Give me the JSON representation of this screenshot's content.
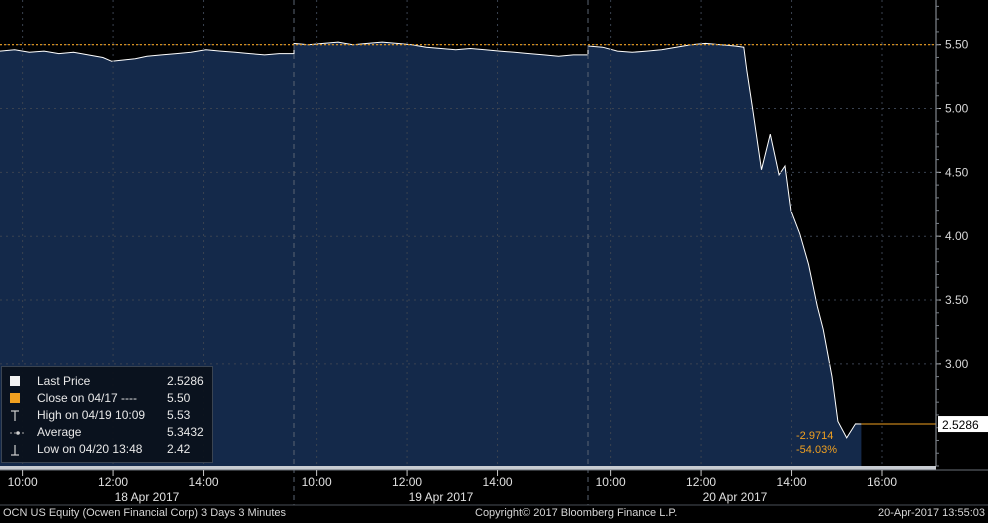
{
  "chart_data": {
    "type": "area",
    "security": "OCN US Equity",
    "x_sessions": [
      {
        "date_label": "18 Apr 2017",
        "time_labels": [
          "10:00",
          "12:00",
          "14:00"
        ]
      },
      {
        "date_label": "19 Apr 2017",
        "time_labels": [
          "10:00",
          "12:00",
          "14:00"
        ]
      },
      {
        "date_label": "20 Apr 2017",
        "time_labels": [
          "10:00",
          "12:00",
          "14:00",
          "16:00"
        ]
      }
    ],
    "y_ticks": [
      "3.00",
      "3.50",
      "4.00",
      "4.50",
      "5.00",
      "5.50"
    ],
    "ylim": [
      2.2,
      5.85
    ],
    "x_unit": "session-day (0 = 18 Apr 09:30, 1 = 19 Apr 09:30, 2 = 20 Apr 09:30)",
    "series": [
      {
        "name": "Last Price",
        "color": "#ffffff",
        "fill": "#14294a",
        "points": [
          [
            0.0,
            5.45
          ],
          [
            0.05,
            5.46
          ],
          [
            0.1,
            5.44
          ],
          [
            0.15,
            5.45
          ],
          [
            0.2,
            5.43
          ],
          [
            0.25,
            5.44
          ],
          [
            0.3,
            5.42
          ],
          [
            0.35,
            5.4
          ],
          [
            0.38,
            5.37
          ],
          [
            0.42,
            5.38
          ],
          [
            0.46,
            5.39
          ],
          [
            0.5,
            5.41
          ],
          [
            0.55,
            5.42
          ],
          [
            0.6,
            5.43
          ],
          [
            0.65,
            5.44
          ],
          [
            0.7,
            5.46
          ],
          [
            0.75,
            5.45
          ],
          [
            0.8,
            5.44
          ],
          [
            0.85,
            5.43
          ],
          [
            0.9,
            5.42
          ],
          [
            0.95,
            5.43
          ],
          [
            1.0,
            5.43
          ],
          [
            1.0,
            5.51
          ],
          [
            1.05,
            5.5
          ],
          [
            1.1,
            5.51
          ],
          [
            1.15,
            5.52
          ],
          [
            1.2,
            5.5
          ],
          [
            1.25,
            5.51
          ],
          [
            1.3,
            5.52
          ],
          [
            1.35,
            5.51
          ],
          [
            1.4,
            5.5
          ],
          [
            1.45,
            5.48
          ],
          [
            1.5,
            5.47
          ],
          [
            1.55,
            5.46
          ],
          [
            1.6,
            5.47
          ],
          [
            1.65,
            5.46
          ],
          [
            1.7,
            5.45
          ],
          [
            1.75,
            5.44
          ],
          [
            1.8,
            5.43
          ],
          [
            1.85,
            5.42
          ],
          [
            1.9,
            5.41
          ],
          [
            1.95,
            5.42
          ],
          [
            2.0,
            5.42
          ],
          [
            2.0,
            5.49
          ],
          [
            2.05,
            5.48
          ],
          [
            2.1,
            5.45
          ],
          [
            2.15,
            5.44
          ],
          [
            2.2,
            5.45
          ],
          [
            2.25,
            5.46
          ],
          [
            2.3,
            5.48
          ],
          [
            2.35,
            5.5
          ],
          [
            2.4,
            5.51
          ],
          [
            2.45,
            5.5
          ],
          [
            2.5,
            5.49
          ],
          [
            2.53,
            5.48
          ],
          [
            2.54,
            5.3
          ],
          [
            2.56,
            5.0
          ],
          [
            2.59,
            4.52
          ],
          [
            2.62,
            4.8
          ],
          [
            2.65,
            4.48
          ],
          [
            2.67,
            4.55
          ],
          [
            2.69,
            4.2
          ],
          [
            2.72,
            4.02
          ],
          [
            2.75,
            3.78
          ],
          [
            2.78,
            3.45
          ],
          [
            2.8,
            3.27
          ],
          [
            2.83,
            2.9
          ],
          [
            2.85,
            2.55
          ],
          [
            2.88,
            2.42
          ],
          [
            2.91,
            2.53
          ],
          [
            2.93,
            2.5286
          ]
        ]
      }
    ],
    "last_price": "2.5286",
    "reference_line": {
      "label": "Close on 04/17",
      "value": 5.5,
      "color": "#f0a020"
    },
    "change_labels": [
      "-2.9714",
      "-54.03%"
    ],
    "legend": [
      {
        "label": "Last Price",
        "value": "2.5286",
        "glyph": "white-square"
      },
      {
        "label": "Close on 04/17 ----",
        "value": "5.50",
        "glyph": "orange-square"
      },
      {
        "label": "High on 04/19 10:09",
        "value": "5.53",
        "glyph": "high-marker"
      },
      {
        "label": "Average",
        "value": "5.3432",
        "glyph": "average-marker"
      },
      {
        "label": "Low on 04/20 13:48",
        "value": "2.42",
        "glyph": "low-marker"
      }
    ]
  },
  "footer": {
    "left": "OCN US Equity (Ocwen Financial Corp) 3 Days 3 Minutes",
    "center": "Copyright© 2017 Bloomberg Finance L.P.",
    "right": "20-Apr-2017 13:55:03"
  },
  "colors": {
    "background": "#000000",
    "area_fill": "#14294a",
    "line": "#ffffff",
    "accent_orange": "#f0a020",
    "grid": "#4a5562"
  }
}
